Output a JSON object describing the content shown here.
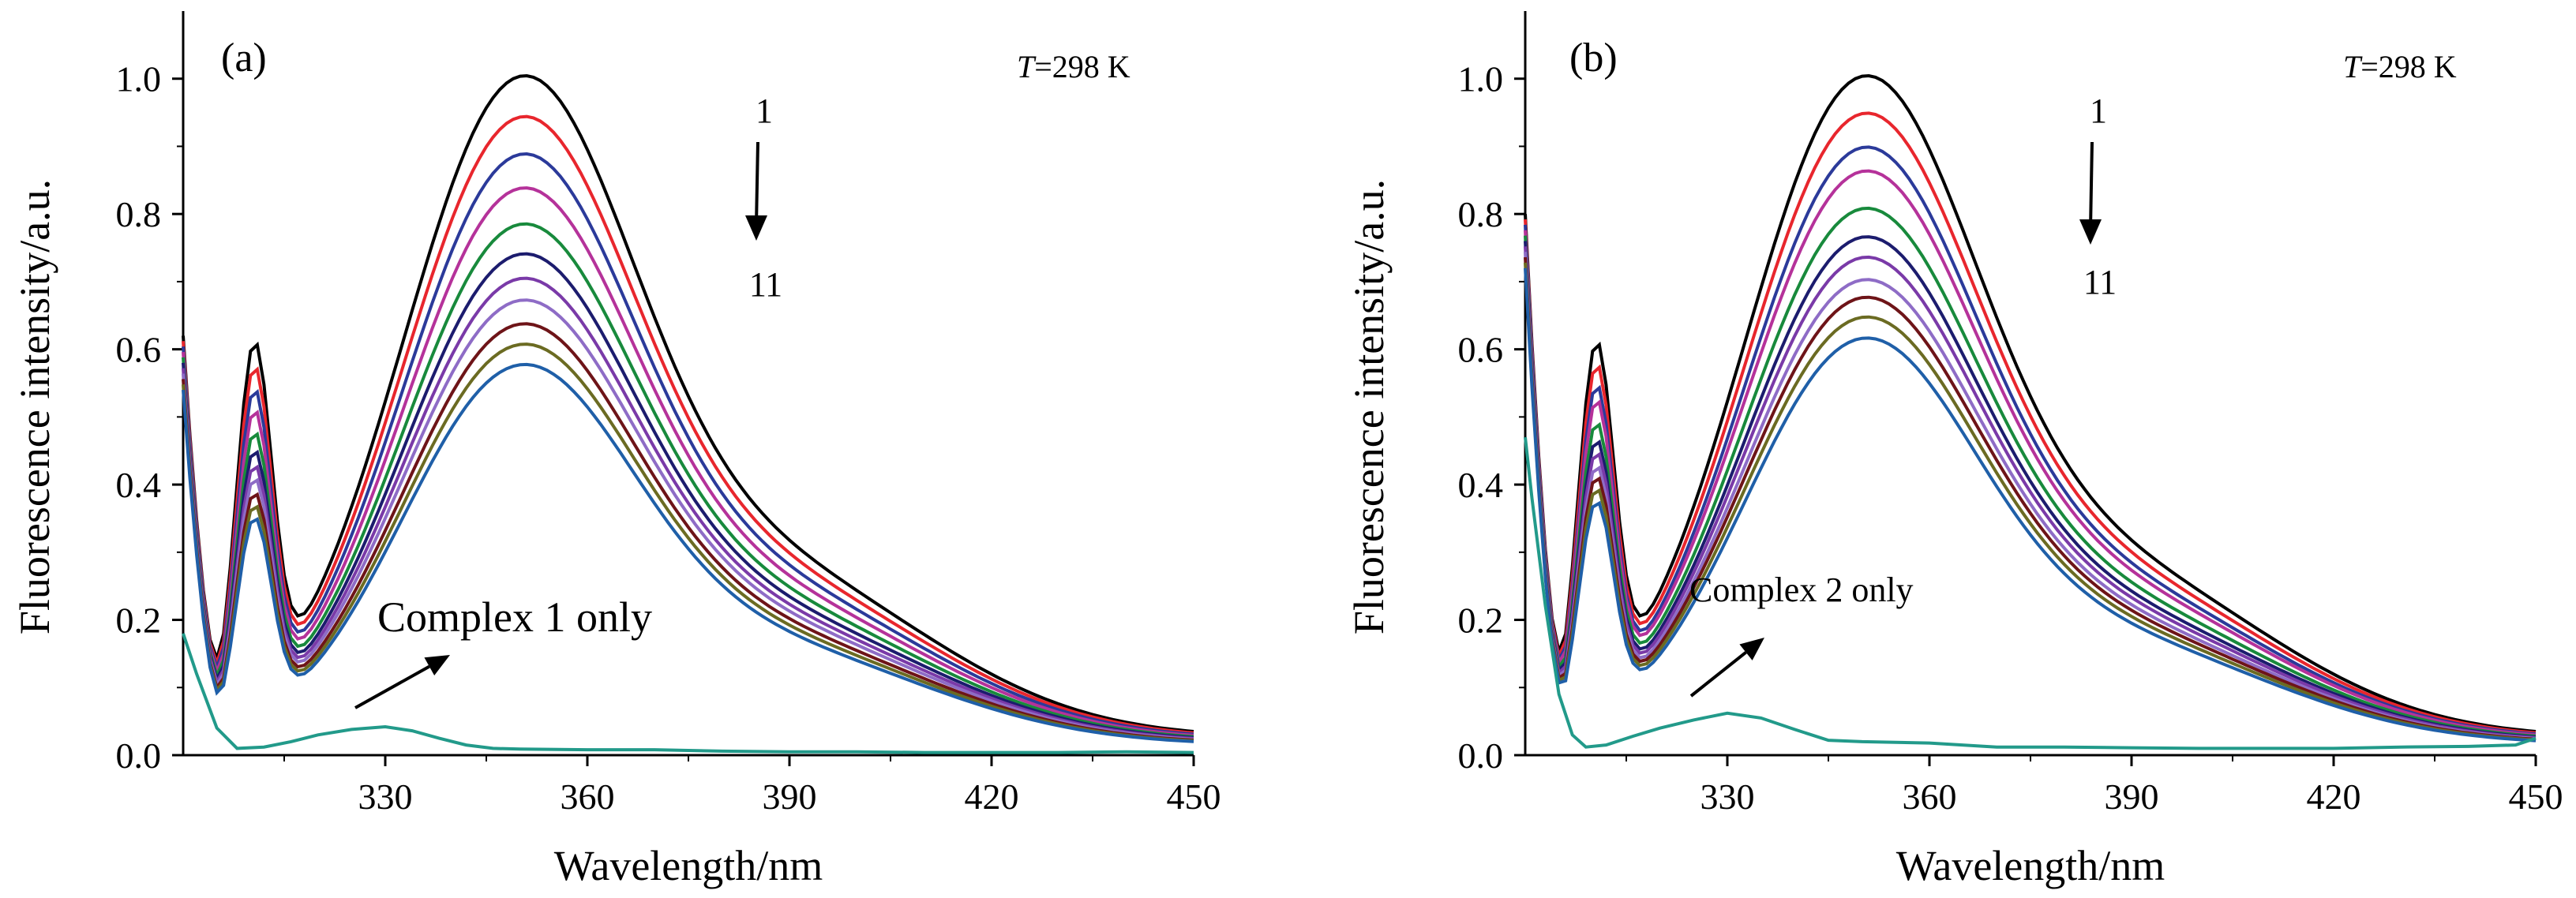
{
  "chart_data": [
    {
      "type": "line",
      "panel_label": "(a)",
      "temperature_label_italic": "T",
      "temperature_label_rest": "=298 K",
      "xlabel": "Wavelength/nm",
      "ylabel": "Fluorescence intensity/a.u.",
      "xlim": [
        300,
        450
      ],
      "ylim": [
        0,
        1.1
      ],
      "x_ticks": [
        330,
        360,
        390,
        420,
        450
      ],
      "x_tick_labels": [
        "330",
        "360",
        "390",
        "420",
        "450"
      ],
      "y_ticks": [
        0.0,
        0.2,
        0.4,
        0.6,
        0.8,
        1.0
      ],
      "y_tick_labels": [
        "0.0",
        "0.2",
        "0.4",
        "0.6",
        "0.8",
        "1.0"
      ],
      "arrow_from_label": "1",
      "arrow_to_label": "11",
      "annotation": "Complex 1 only",
      "series_peaks": [
        1.0,
        0.94,
        0.885,
        0.835,
        0.782,
        0.738,
        0.702,
        0.67,
        0.635,
        0.605,
        0.575
      ],
      "series_colors": [
        "#000000",
        "#e8262d",
        "#2b3a9a",
        "#b5329a",
        "#188a3c",
        "#1c1c6e",
        "#7a3aa8",
        "#8e6cc6",
        "#6e1418",
        "#6b6b22",
        "#1f5fa8"
      ],
      "blank_series": {
        "color": "#229a8a",
        "x": [
          300,
          302,
          305,
          308,
          312,
          316,
          320,
          325,
          330,
          334,
          338,
          342,
          346,
          350,
          360,
          370,
          380,
          390,
          400,
          410,
          420,
          430,
          440,
          450
        ],
        "y": [
          0.18,
          0.12,
          0.04,
          0.01,
          0.012,
          0.02,
          0.03,
          0.038,
          0.042,
          0.036,
          0.025,
          0.015,
          0.01,
          0.009,
          0.008,
          0.008,
          0.006,
          0.005,
          0.005,
          0.004,
          0.004,
          0.004,
          0.005,
          0.004
        ]
      }
    },
    {
      "type": "line",
      "panel_label": "(b)",
      "temperature_label_italic": "T",
      "temperature_label_rest": "=298 K",
      "xlabel": "Wavelength/nm",
      "ylabel": "Fluorescence intensity/a.u.",
      "xlim": [
        300,
        450
      ],
      "ylim": [
        0,
        1.1
      ],
      "x_ticks": [
        330,
        360,
        390,
        420,
        450
      ],
      "x_tick_labels": [
        "330",
        "360",
        "390",
        "420",
        "450"
      ],
      "y_ticks": [
        0.0,
        0.2,
        0.4,
        0.6,
        0.8,
        1.0
      ],
      "y_tick_labels": [
        "0.0",
        "0.2",
        "0.4",
        "0.6",
        "0.8",
        "1.0"
      ],
      "arrow_from_label": "1",
      "arrow_to_label": "11",
      "annotation": "Complex 2 only",
      "series_peaks": [
        1.0,
        0.945,
        0.895,
        0.86,
        0.805,
        0.763,
        0.733,
        0.7,
        0.674,
        0.645,
        0.614
      ],
      "series_colors": [
        "#000000",
        "#e8262d",
        "#2b3a9a",
        "#b5329a",
        "#188a3c",
        "#1c1c6e",
        "#7a3aa8",
        "#8e6cc6",
        "#6e1418",
        "#6b6b22",
        "#1f5fa8"
      ],
      "blank_series": {
        "color": "#229a8a",
        "x": [
          300,
          301,
          303,
          305,
          307,
          309,
          312,
          316,
          320,
          325,
          330,
          335,
          340,
          345,
          350,
          360,
          370,
          380,
          390,
          400,
          410,
          420,
          430,
          440,
          447,
          450
        ],
        "y": [
          0.47,
          0.38,
          0.22,
          0.09,
          0.03,
          0.012,
          0.015,
          0.028,
          0.04,
          0.052,
          0.062,
          0.055,
          0.038,
          0.022,
          0.02,
          0.018,
          0.012,
          0.012,
          0.011,
          0.01,
          0.01,
          0.01,
          0.012,
          0.013,
          0.015,
          0.025
        ]
      }
    }
  ]
}
